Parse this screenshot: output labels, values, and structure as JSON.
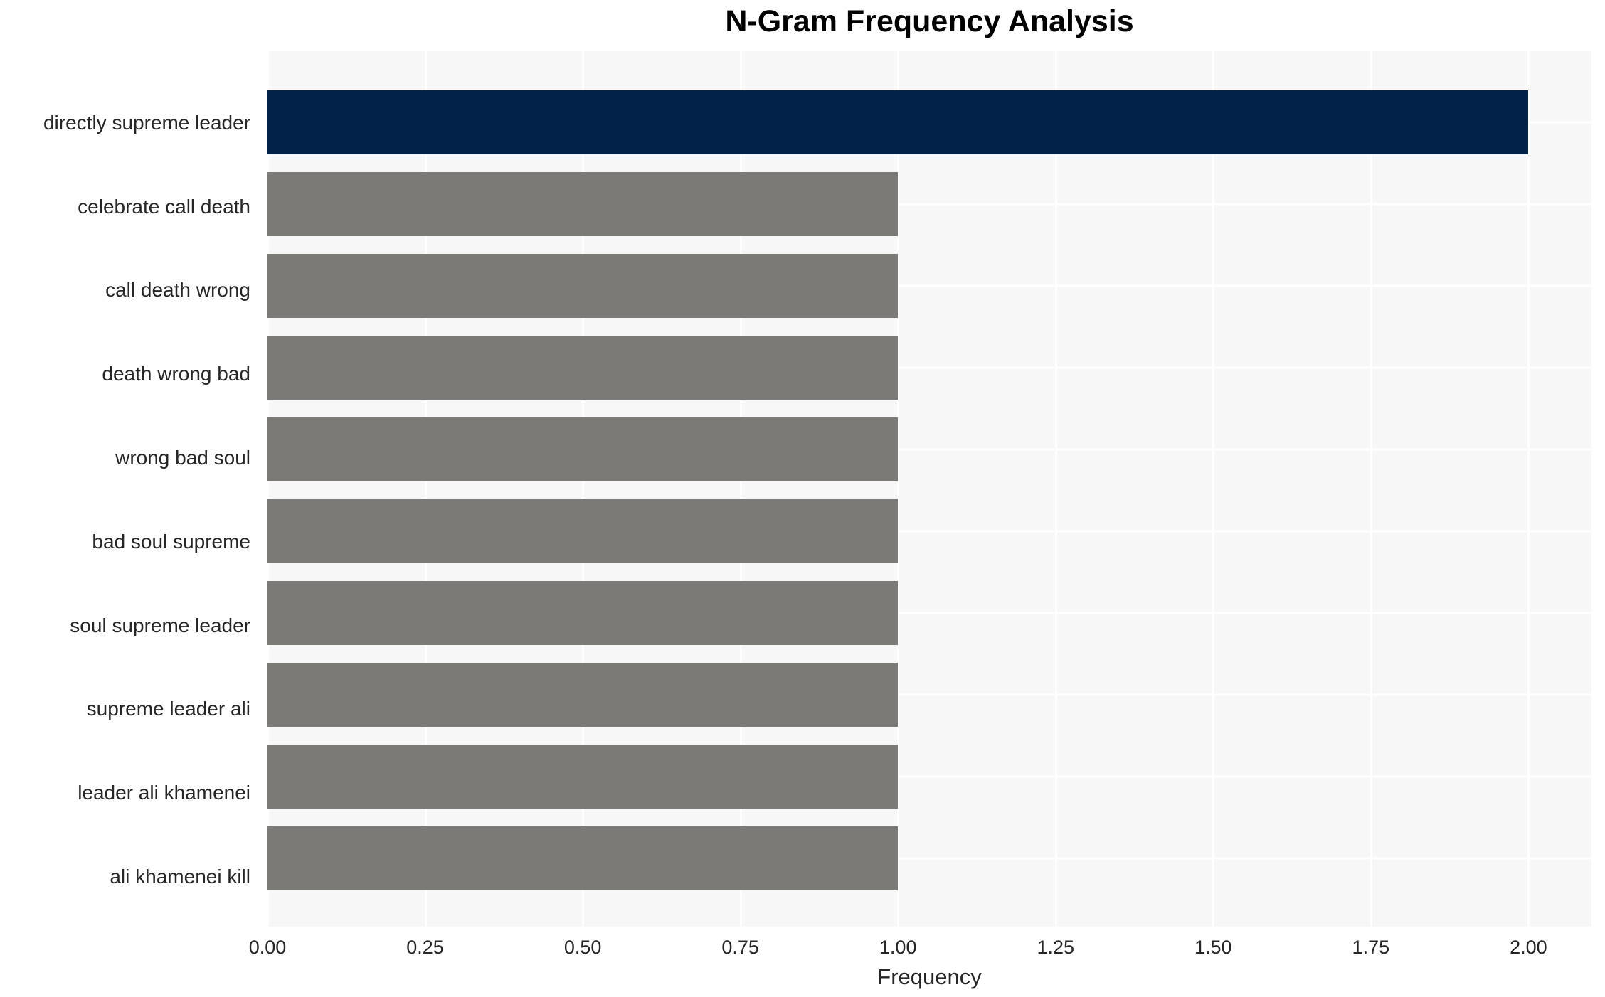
{
  "title": "N-Gram Frequency Analysis",
  "colors": {
    "highlight_bar": "#03224a",
    "default_bar": "#7b7a76",
    "plot_background": "#f7f7f7",
    "gridline": "#ffffff",
    "text": "#262626",
    "title_text": "#000000",
    "figure_background": "#ffffff"
  },
  "chart_data": {
    "type": "bar",
    "orientation": "horizontal",
    "title": "N-Gram Frequency Analysis",
    "xlabel": "Frequency",
    "ylabel": "",
    "categories": [
      "directly supreme leader",
      "celebrate call death",
      "call death wrong",
      "death wrong bad",
      "wrong bad soul",
      "bad soul supreme",
      "soul supreme leader",
      "supreme leader ali",
      "leader ali khamenei",
      "ali khamenei kill"
    ],
    "values": [
      2,
      1,
      1,
      1,
      1,
      1,
      1,
      1,
      1,
      1
    ],
    "bar_colors": [
      "#03224a",
      "#7b7a76",
      "#7b7a76",
      "#7b7a76",
      "#7b7a76",
      "#7b7a76",
      "#7b7a76",
      "#7b7a76",
      "#7b7a76",
      "#7b7a76"
    ],
    "xlim": [
      0,
      2.1
    ],
    "xticks": [
      0,
      0.25,
      0.5,
      0.75,
      1.0,
      1.25,
      1.5,
      1.75,
      2.0
    ],
    "xtick_labels": [
      "0.00",
      "0.25",
      "0.50",
      "0.75",
      "1.00",
      "1.25",
      "1.50",
      "1.75",
      "2.00"
    ],
    "grid": "white major gridlines (vertical at x ticks, horizontal at category centers) on light gray panel",
    "legend": false
  }
}
